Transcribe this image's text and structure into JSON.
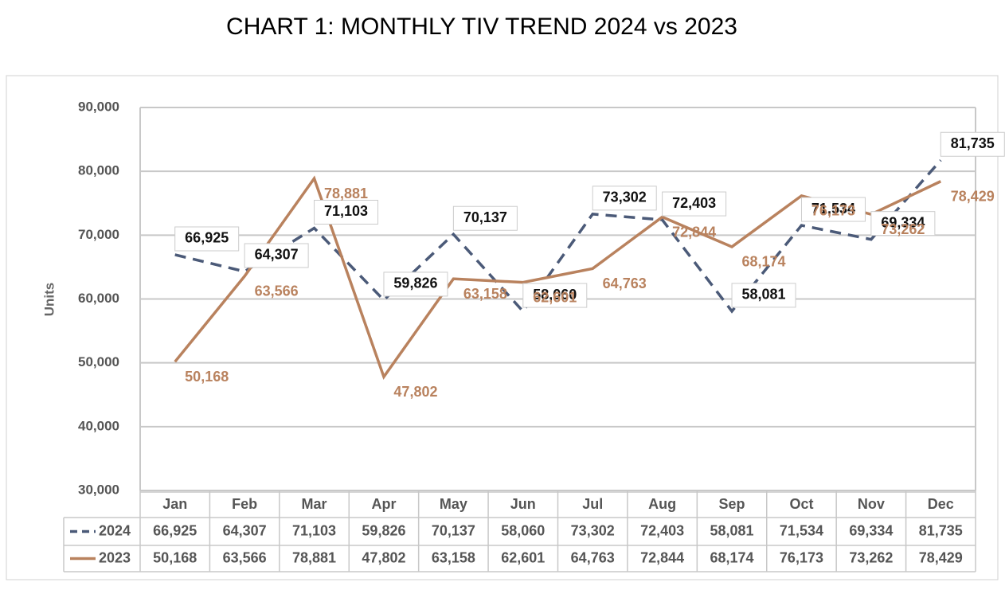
{
  "chart_data": {
    "type": "line",
    "title": "CHART 1: MONTHLY TIV TREND 2024 vs 2023",
    "y_label": "Units",
    "categories": [
      "Jan",
      "Feb",
      "Mar",
      "Apr",
      "May",
      "Jun",
      "Jul",
      "Aug",
      "Sep",
      "Oct",
      "Nov",
      "Dec"
    ],
    "series": [
      {
        "name": "2024",
        "color": "#4b5a78",
        "dashed": true,
        "values": [
          66925,
          64307,
          71103,
          59826,
          70137,
          58060,
          73302,
          72403,
          58081,
          71534,
          69334,
          81735
        ],
        "value_labels": [
          "66,925",
          "64,307",
          "71,103",
          "59,826",
          "70,137",
          "58,060",
          "73,302",
          "72,403",
          "58,081",
          "71,534",
          "69,334",
          "81,735"
        ]
      },
      {
        "name": "2023",
        "color": "#b9825e",
        "dashed": false,
        "values": [
          50168,
          63566,
          78881,
          47802,
          63158,
          62601,
          64763,
          72844,
          68174,
          76173,
          73262,
          78429
        ],
        "value_labels": [
          "50,168",
          "63,566",
          "78,881",
          "47,802",
          "63,158",
          "62,601",
          "64,763",
          "72,844",
          "68,174",
          "76,173",
          "73,262",
          "78,429"
        ]
      }
    ],
    "ylim": [
      30000,
      90000
    ],
    "yticks": [
      {
        "value": 30000,
        "label": "30,000"
      },
      {
        "value": 40000,
        "label": "40,000"
      },
      {
        "value": 50000,
        "label": "50,000"
      },
      {
        "value": 60000,
        "label": "60,000"
      },
      {
        "value": 70000,
        "label": "70,000"
      },
      {
        "value": 80000,
        "label": "80,000"
      },
      {
        "value": 90000,
        "label": "90,000"
      }
    ],
    "grid": true
  }
}
